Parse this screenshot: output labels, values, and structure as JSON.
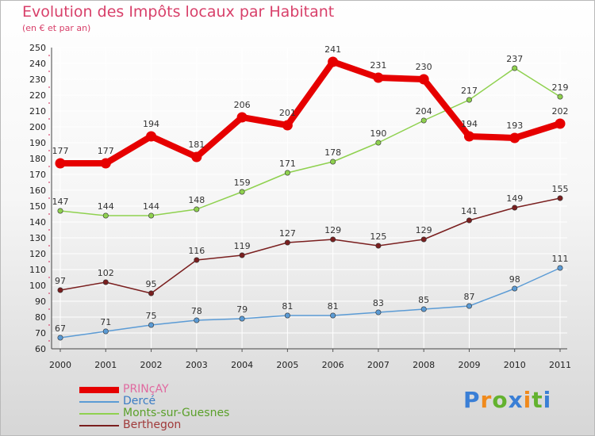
{
  "chart_data": {
    "type": "line",
    "title": "Evolution des Impôts locaux par Habitant",
    "subtitle": "(en € et par an)",
    "x": [
      "2000",
      "2001",
      "2002",
      "2003",
      "2004",
      "2005",
      "2006",
      "2007",
      "2008",
      "2009",
      "2010",
      "2011"
    ],
    "ylim": [
      60,
      250
    ],
    "yticks": [
      60,
      70,
      80,
      90,
      100,
      110,
      120,
      130,
      140,
      150,
      160,
      170,
      180,
      190,
      200,
      210,
      220,
      230,
      240,
      250
    ],
    "grid": true,
    "legend_position": "bottom-left",
    "series": [
      {
        "name": "PRINçAY",
        "color": "#e60000",
        "values": [
          177,
          177,
          194,
          181,
          206,
          201,
          241,
          231,
          230,
          194,
          193,
          202
        ]
      },
      {
        "name": "Dercé",
        "color": "#5b9bd5",
        "values": [
          67,
          71,
          75,
          78,
          79,
          81,
          81,
          83,
          85,
          87,
          98,
          111
        ]
      },
      {
        "name": "Monts-sur-Guesnes",
        "color": "#8fd14f",
        "values": [
          147,
          144,
          144,
          148,
          159,
          171,
          178,
          190,
          204,
          217,
          237,
          219
        ]
      },
      {
        "name": "Berthegon",
        "color": "#7a1f1f",
        "values": [
          97,
          102,
          95,
          116,
          119,
          127,
          129,
          125,
          129,
          141,
          149,
          155
        ]
      }
    ]
  },
  "logo": {
    "letters": [
      "P",
      "r",
      "o",
      "x",
      "i",
      "t",
      "i"
    ],
    "colors": [
      "#3a7fd6",
      "#f08a1c",
      "#63b22f",
      "#3a7fd6",
      "#f08a1c",
      "#63b22f",
      "#3a7fd6"
    ]
  }
}
